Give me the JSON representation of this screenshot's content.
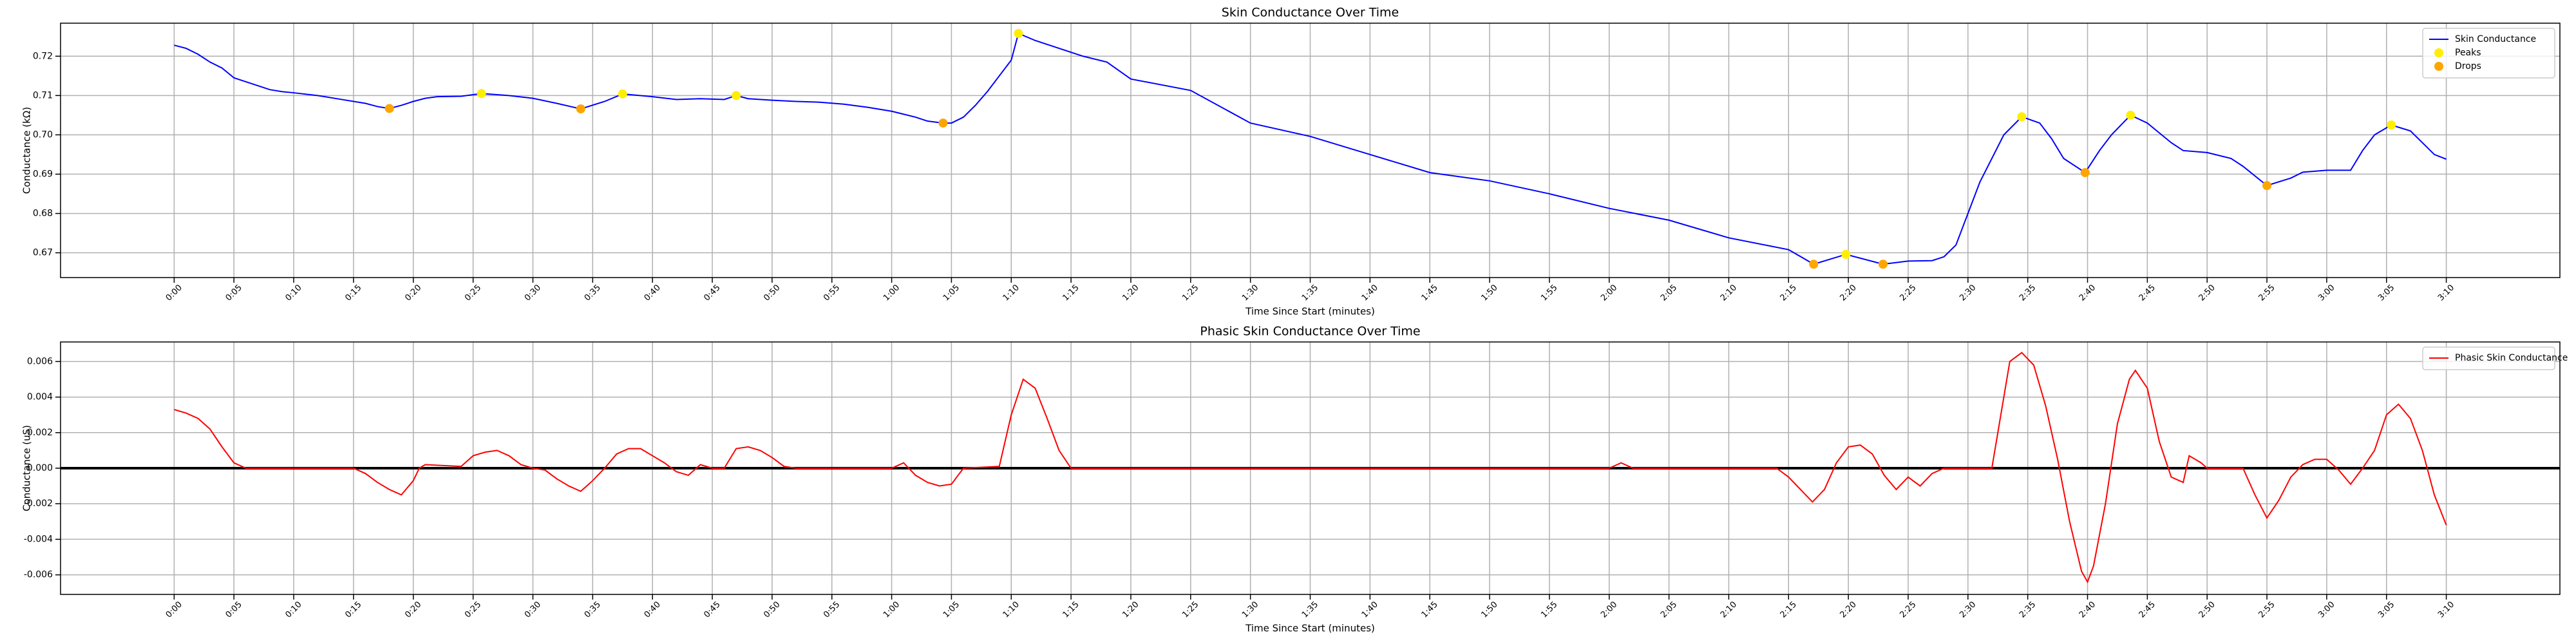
{
  "chart_data": [
    {
      "type": "line",
      "title": "Skin Conductance Over Time",
      "xlabel": "Time Since Start (minutes)",
      "ylabel": "Conductance (kΩ)",
      "xlim": [
        -9.5,
        199.5
      ],
      "ylim": [
        0.6637,
        0.7284
      ],
      "grid": true,
      "legend": "upper right",
      "xticks": [
        {
          "value": 0,
          "label": "0:00"
        },
        {
          "value": 5,
          "label": "0:05"
        },
        {
          "value": 10,
          "label": "0:10"
        },
        {
          "value": 15,
          "label": "0:15"
        },
        {
          "value": 20,
          "label": "0:20"
        },
        {
          "value": 25,
          "label": "0:25"
        },
        {
          "value": 30,
          "label": "0:30"
        },
        {
          "value": 35,
          "label": "0:35"
        },
        {
          "value": 40,
          "label": "0:40"
        },
        {
          "value": 45,
          "label": "0:45"
        },
        {
          "value": 50,
          "label": "0:50"
        },
        {
          "value": 55,
          "label": "0:55"
        },
        {
          "value": 60,
          "label": "1:00"
        },
        {
          "value": 65,
          "label": "1:05"
        },
        {
          "value": 70,
          "label": "1:10"
        },
        {
          "value": 75,
          "label": "1:15"
        },
        {
          "value": 80,
          "label": "1:20"
        },
        {
          "value": 85,
          "label": "1:25"
        },
        {
          "value": 90,
          "label": "1:30"
        },
        {
          "value": 95,
          "label": "1:35"
        },
        {
          "value": 100,
          "label": "1:40"
        },
        {
          "value": 105,
          "label": "1:45"
        },
        {
          "value": 110,
          "label": "1:50"
        },
        {
          "value": 115,
          "label": "1:55"
        },
        {
          "value": 120,
          "label": "2:00"
        },
        {
          "value": 125,
          "label": "2:05"
        },
        {
          "value": 130,
          "label": "2:10"
        },
        {
          "value": 135,
          "label": "2:15"
        },
        {
          "value": 140,
          "label": "2:20"
        },
        {
          "value": 145,
          "label": "2:25"
        },
        {
          "value": 150,
          "label": "2:30"
        },
        {
          "value": 155,
          "label": "2:35"
        },
        {
          "value": 160,
          "label": "2:40"
        },
        {
          "value": 165,
          "label": "2:45"
        },
        {
          "value": 170,
          "label": "2:50"
        },
        {
          "value": 175,
          "label": "2:55"
        },
        {
          "value": 180,
          "label": "3:00"
        },
        {
          "value": 185,
          "label": "3:05"
        },
        {
          "value": 190,
          "label": "3:10"
        }
      ],
      "yticks": [
        0.67,
        0.68,
        0.69,
        {
          "value": 0.7,
          "label": "0.70"
        },
        0.71,
        0.72
      ],
      "series": [
        {
          "name": "Skin Conductance",
          "kind": "line",
          "color": "#0000ff",
          "x": [
            0,
            1,
            2,
            3,
            4,
            5,
            6,
            7,
            8,
            9,
            10,
            12,
            14,
            16,
            17,
            18,
            19,
            20,
            21,
            22,
            24,
            25.7,
            28,
            30,
            32,
            34,
            36,
            37.5,
            40,
            42,
            44,
            46,
            47,
            48,
            50,
            52,
            54,
            56,
            58,
            60,
            62,
            63,
            64.3,
            65,
            66,
            67,
            68,
            69,
            70,
            70.6,
            72,
            74,
            76,
            78,
            80,
            85,
            90,
            95,
            100,
            105,
            110,
            115,
            120,
            125,
            130,
            135,
            137.1,
            139.8,
            142.9,
            145,
            147,
            148,
            149,
            150,
            151,
            152,
            153,
            154.5,
            156,
            157,
            158,
            159.8,
            161,
            162,
            163.6,
            165,
            167,
            168,
            170,
            172,
            173,
            175,
            177,
            178,
            180,
            182,
            183,
            184,
            185.4,
            187,
            188,
            189,
            190
          ],
          "values": [
            0.7228,
            0.722,
            0.7205,
            0.7185,
            0.717,
            0.7145,
            0.7135,
            0.7125,
            0.7115,
            0.711,
            0.7107,
            0.71,
            0.709,
            0.708,
            0.7072,
            0.7067,
            0.7075,
            0.7085,
            0.7093,
            0.7097,
            0.7098,
            0.7105,
            0.71,
            0.7093,
            0.708,
            0.7066,
            0.7085,
            0.7104,
            0.7097,
            0.709,
            0.7092,
            0.709,
            0.71,
            0.7092,
            0.7088,
            0.7085,
            0.7083,
            0.7078,
            0.707,
            0.706,
            0.7045,
            0.7035,
            0.703,
            0.703,
            0.7045,
            0.7075,
            0.711,
            0.715,
            0.719,
            0.7258,
            0.724,
            0.722,
            0.72,
            0.7185,
            0.7142,
            0.7113,
            0.703,
            0.6996,
            0.695,
            0.6904,
            0.6883,
            0.685,
            0.6813,
            0.6783,
            0.6738,
            0.6708,
            0.6671,
            0.6696,
            0.6671,
            0.6679,
            0.668,
            0.669,
            0.672,
            0.68,
            0.688,
            0.694,
            0.7,
            0.7046,
            0.703,
            0.699,
            0.694,
            0.6904,
            0.696,
            0.7,
            0.705,
            0.703,
            0.698,
            0.696,
            0.6955,
            0.694,
            0.692,
            0.6871,
            0.689,
            0.6905,
            0.691,
            0.691,
            0.696,
            0.7,
            0.7025,
            0.701,
            0.698,
            0.695,
            0.6938
          ]
        },
        {
          "name": "Peaks",
          "kind": "scatter",
          "color": "#ffee00",
          "x": [
            25.7,
            37.5,
            47,
            70.6,
            139.8,
            154.5,
            163.6,
            185.4
          ],
          "values": [
            0.7105,
            0.7104,
            0.71,
            0.7258,
            0.6696,
            0.7046,
            0.705,
            0.7025
          ]
        },
        {
          "name": "Drops",
          "kind": "scatter",
          "color": "#ffa500",
          "x": [
            18,
            34,
            64.3,
            137.1,
            142.9,
            159.8,
            175
          ],
          "values": [
            0.7067,
            0.7066,
            0.703,
            0.6671,
            0.6671,
            0.6904,
            0.6871
          ]
        }
      ]
    },
    {
      "type": "line",
      "title": "Phasic Skin Conductance Over Time",
      "xlabel": "Time Since Start (minutes)",
      "ylabel": "Conductance (uS)",
      "xlim": [
        -9.5,
        199.5
      ],
      "ylim": [
        -0.0071,
        0.0071
      ],
      "grid": true,
      "legend": "upper right",
      "hline": 0,
      "xticks": [
        {
          "value": 0,
          "label": "0:00"
        },
        {
          "value": 5,
          "label": "0:05"
        },
        {
          "value": 10,
          "label": "0:10"
        },
        {
          "value": 15,
          "label": "0:15"
        },
        {
          "value": 20,
          "label": "0:20"
        },
        {
          "value": 25,
          "label": "0:25"
        },
        {
          "value": 30,
          "label": "0:30"
        },
        {
          "value": 35,
          "label": "0:35"
        },
        {
          "value": 40,
          "label": "0:40"
        },
        {
          "value": 45,
          "label": "0:45"
        },
        {
          "value": 50,
          "label": "0:50"
        },
        {
          "value": 55,
          "label": "0:55"
        },
        {
          "value": 60,
          "label": "1:00"
        },
        {
          "value": 65,
          "label": "1:05"
        },
        {
          "value": 70,
          "label": "1:10"
        },
        {
          "value": 75,
          "label": "1:15"
        },
        {
          "value": 80,
          "label": "1:20"
        },
        {
          "value": 85,
          "label": "1:25"
        },
        {
          "value": 90,
          "label": "1:30"
        },
        {
          "value": 95,
          "label": "1:35"
        },
        {
          "value": 100,
          "label": "1:40"
        },
        {
          "value": 105,
          "label": "1:45"
        },
        {
          "value": 110,
          "label": "1:50"
        },
        {
          "value": 115,
          "label": "1:55"
        },
        {
          "value": 120,
          "label": "2:00"
        },
        {
          "value": 125,
          "label": "2:05"
        },
        {
          "value": 130,
          "label": "2:10"
        },
        {
          "value": 135,
          "label": "2:15"
        },
        {
          "value": 140,
          "label": "2:20"
        },
        {
          "value": 145,
          "label": "2:25"
        },
        {
          "value": 150,
          "label": "2:30"
        },
        {
          "value": 155,
          "label": "2:35"
        },
        {
          "value": 160,
          "label": "2:40"
        },
        {
          "value": 165,
          "label": "2:45"
        },
        {
          "value": 170,
          "label": "2:50"
        },
        {
          "value": 175,
          "label": "2:55"
        },
        {
          "value": 180,
          "label": "3:00"
        },
        {
          "value": 185,
          "label": "3:05"
        },
        {
          "value": 190,
          "label": "3:10"
        }
      ],
      "yticks": [
        -0.006,
        -0.004,
        -0.002,
        {
          "value": 0,
          "label": "0.000"
        },
        0.002,
        0.004,
        0.006
      ],
      "series": [
        {
          "name": "Phasic Skin Conductance",
          "kind": "line",
          "color": "#ff0000",
          "x": [
            0,
            1,
            2,
            3,
            4,
            5,
            6,
            15,
            16,
            17,
            18,
            19,
            20,
            20.5,
            21,
            24,
            25,
            26,
            27,
            28,
            29,
            30,
            31,
            32,
            33,
            34,
            35,
            36,
            37,
            38,
            39,
            40,
            41,
            42,
            43,
            44,
            45,
            46,
            47,
            48,
            49,
            50,
            51,
            52,
            60,
            61,
            62,
            63,
            64,
            65,
            66,
            69,
            70,
            71,
            72,
            73,
            74,
            75,
            120,
            121,
            122,
            134,
            135,
            136,
            137,
            138,
            139,
            140,
            141,
            142,
            143,
            144,
            145,
            146,
            147,
            148,
            152,
            152.5,
            153.5,
            154.5,
            155.5,
            156.5,
            157.5,
            158.5,
            159.5,
            160,
            160.5,
            161.5,
            162.5,
            163.5,
            164,
            165,
            166,
            167,
            168,
            168.5,
            169.5,
            170,
            173,
            174,
            175,
            176,
            177,
            178,
            179,
            180,
            181,
            182,
            183,
            184,
            185,
            186,
            187,
            188,
            189,
            190
          ],
          "values": [
            0.0033,
            0.0031,
            0.0028,
            0.0022,
            0.0012,
            0.0003,
            0,
            0,
            -0.0003,
            -0.0008,
            -0.0012,
            -0.0015,
            -0.0007,
            0,
            0.0002,
            0.0001,
            0.0007,
            0.0009,
            0.001,
            0.0007,
            0.0002,
            0,
            -0.0001,
            -0.0006,
            -0.001,
            -0.0013,
            -0.0007,
            0,
            0.0008,
            0.0011,
            0.0011,
            0.0007,
            0.0003,
            -0.0002,
            -0.0004,
            0.0002,
            0,
            0,
            0.0011,
            0.0012,
            0.001,
            0.0006,
            0.0001,
            0,
            0,
            0.0003,
            -0.0004,
            -0.0008,
            -0.001,
            -0.0009,
            0,
            0.0001,
            0.003,
            0.005,
            0.0045,
            0.0028,
            0.001,
            0,
            0,
            0.0003,
            0,
            0,
            -0.0005,
            -0.0012,
            -0.0019,
            -0.0012,
            0.0003,
            0.0012,
            0.0013,
            0.0008,
            -0.0004,
            -0.0012,
            -0.0005,
            -0.001,
            -0.0003,
            0,
            0,
            0.002,
            0.006,
            0.0065,
            0.0058,
            0.0035,
            0.0005,
            -0.003,
            -0.0058,
            -0.0064,
            -0.0055,
            -0.002,
            0.0025,
            0.005,
            0.0055,
            0.0045,
            0.0015,
            -0.0005,
            -0.0008,
            0.0007,
            0.0003,
            0,
            0,
            -0.0015,
            -0.0028,
            -0.0018,
            -0.0005,
            0.0002,
            0.0005,
            0.0005,
            -0.0001,
            -0.0009,
            0,
            0.001,
            0.003,
            0.0036,
            0.0028,
            0.001,
            -0.0015,
            -0.0032
          ]
        }
      ]
    }
  ]
}
